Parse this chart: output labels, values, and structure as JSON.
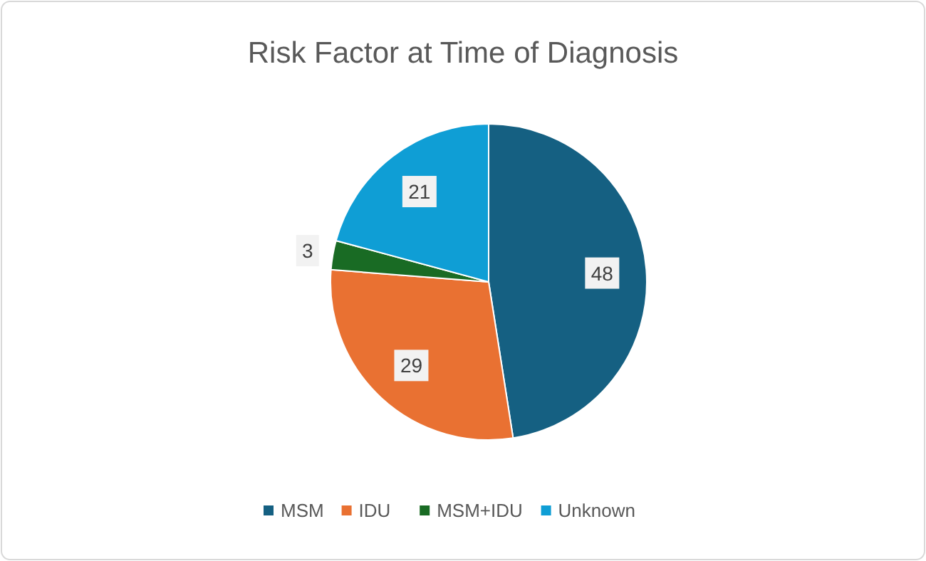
{
  "chart_data": {
    "type": "pie",
    "title": "Risk Factor at Time of Diagnosis",
    "categories": [
      "MSM",
      "IDU",
      "MSM+IDU",
      "Unknown"
    ],
    "values": [
      48,
      29,
      3,
      21
    ],
    "colors": [
      "#156082",
      "#e97132",
      "#196b24",
      "#0f9ed5"
    ],
    "data_labels": true,
    "legend": "bottom"
  }
}
